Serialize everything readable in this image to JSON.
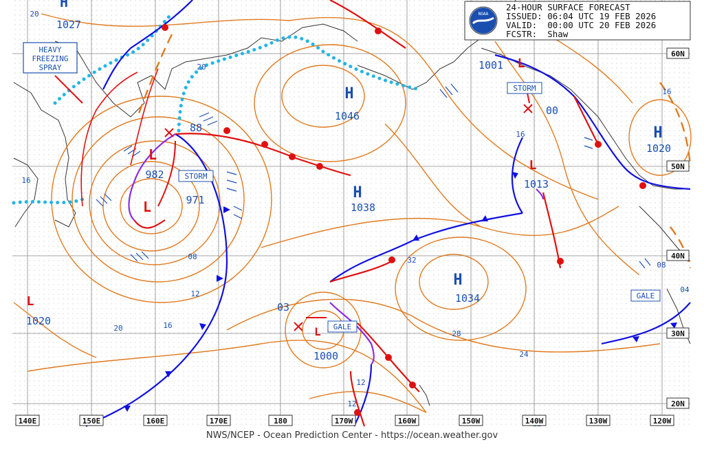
{
  "header": {
    "lines": [
      "24-HOUR SURFACE FORECAST",
      "ISSUED: 06:04 UTC 19 FEB 2026",
      "VALID:  00:00 UTC 20 FEB 2026",
      "FCSTR:  Shaw"
    ],
    "logo_text": "NOAA"
  },
  "footer": "NWS/NCEP - Ocean Prediction Center - https://ocean.weather.gov",
  "longitude_labels": [
    "140E",
    "150E",
    "160E",
    "170E",
    "180",
    "170W",
    "160W",
    "150W",
    "140W",
    "130W",
    "120W"
  ],
  "latitude_labels": [
    "60N",
    "50N",
    "40N",
    "30N",
    "20N"
  ],
  "pressure_centers": [
    {
      "type": "H",
      "value": "1027"
    },
    {
      "type": "H",
      "value": "1046"
    },
    {
      "type": "H",
      "value": "1038"
    },
    {
      "type": "H",
      "value": "1034"
    },
    {
      "type": "H",
      "value": "1020"
    },
    {
      "type": "L",
      "value": "982"
    },
    {
      "type": "L",
      "value": "971"
    },
    {
      "type": "L",
      "value": "1000"
    },
    {
      "type": "L",
      "value": "1001"
    },
    {
      "type": "L",
      "value": "1013"
    },
    {
      "type": "L",
      "value": "1020"
    }
  ],
  "misc_numbers": [
    "88",
    "03",
    "00"
  ],
  "isobar_labels": [
    "20",
    "16",
    "08",
    "12",
    "16",
    "20",
    "32",
    "28",
    "24",
    "12",
    "12",
    "16",
    "16",
    "08",
    "04",
    "12",
    "20"
  ],
  "warnings": [
    "STORM",
    "STORM",
    "GALE",
    "GALE"
  ],
  "annotation": [
    "HEAVY",
    "FREEZING",
    "SPRAY"
  ],
  "colors": {
    "isobar": "#e07a1f",
    "cold_front": "#1010e0",
    "warm_front": "#e01010",
    "occluded": "#8a2be2",
    "ice": "#22b5e6",
    "label_blue": "#1a4fb0",
    "grid": "#999999"
  }
}
